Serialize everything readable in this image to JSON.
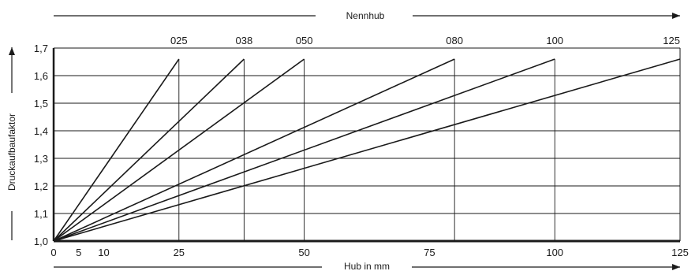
{
  "chart_data": {
    "type": "line",
    "title": "",
    "top_label": "Nennhub",
    "xlabel": "Hub in mm",
    "ylabel": "Druckaufbaufaktor",
    "xlim": [
      0,
      125
    ],
    "ylim": [
      1.0,
      1.7
    ],
    "x_ticks": [
      {
        "value": 0,
        "label": "0"
      },
      {
        "value": 5,
        "label": "5"
      },
      {
        "value": 10,
        "label": "10"
      },
      {
        "value": 25,
        "label": "25"
      },
      {
        "value": 50,
        "label": "50"
      },
      {
        "value": 75,
        "label": "75"
      },
      {
        "value": 100,
        "label": "100"
      },
      {
        "value": 125,
        "label": "125"
      }
    ],
    "y_ticks": [
      {
        "value": 1.0,
        "label": "1,0"
      },
      {
        "value": 1.1,
        "label": "1,1"
      },
      {
        "value": 1.2,
        "label": "1,2"
      },
      {
        "value": 1.3,
        "label": "1,3"
      },
      {
        "value": 1.4,
        "label": "1,4"
      },
      {
        "value": 1.5,
        "label": "1,5"
      },
      {
        "value": 1.6,
        "label": "1,6"
      },
      {
        "value": 1.7,
        "label": "1,7"
      }
    ],
    "grid": true,
    "series": [
      {
        "label": "025",
        "nominal_stroke": 25,
        "x": [
          0,
          25
        ],
        "y": [
          1.0,
          1.66
        ]
      },
      {
        "label": "038",
        "nominal_stroke": 38,
        "x": [
          0,
          38
        ],
        "y": [
          1.0,
          1.66
        ]
      },
      {
        "label": "050",
        "nominal_stroke": 50,
        "x": [
          0,
          50
        ],
        "y": [
          1.0,
          1.66
        ]
      },
      {
        "label": "080",
        "nominal_stroke": 80,
        "x": [
          0,
          80
        ],
        "y": [
          1.0,
          1.66
        ]
      },
      {
        "label": "100",
        "nominal_stroke": 100,
        "x": [
          0,
          100
        ],
        "y": [
          1.0,
          1.66
        ]
      },
      {
        "label": "125",
        "nominal_stroke": 125,
        "x": [
          0,
          125
        ],
        "y": [
          1.0,
          1.66
        ]
      }
    ],
    "colors": {
      "line": "#1a1a1a",
      "grid": "#1a1a1a",
      "background": "#ffffff"
    }
  }
}
